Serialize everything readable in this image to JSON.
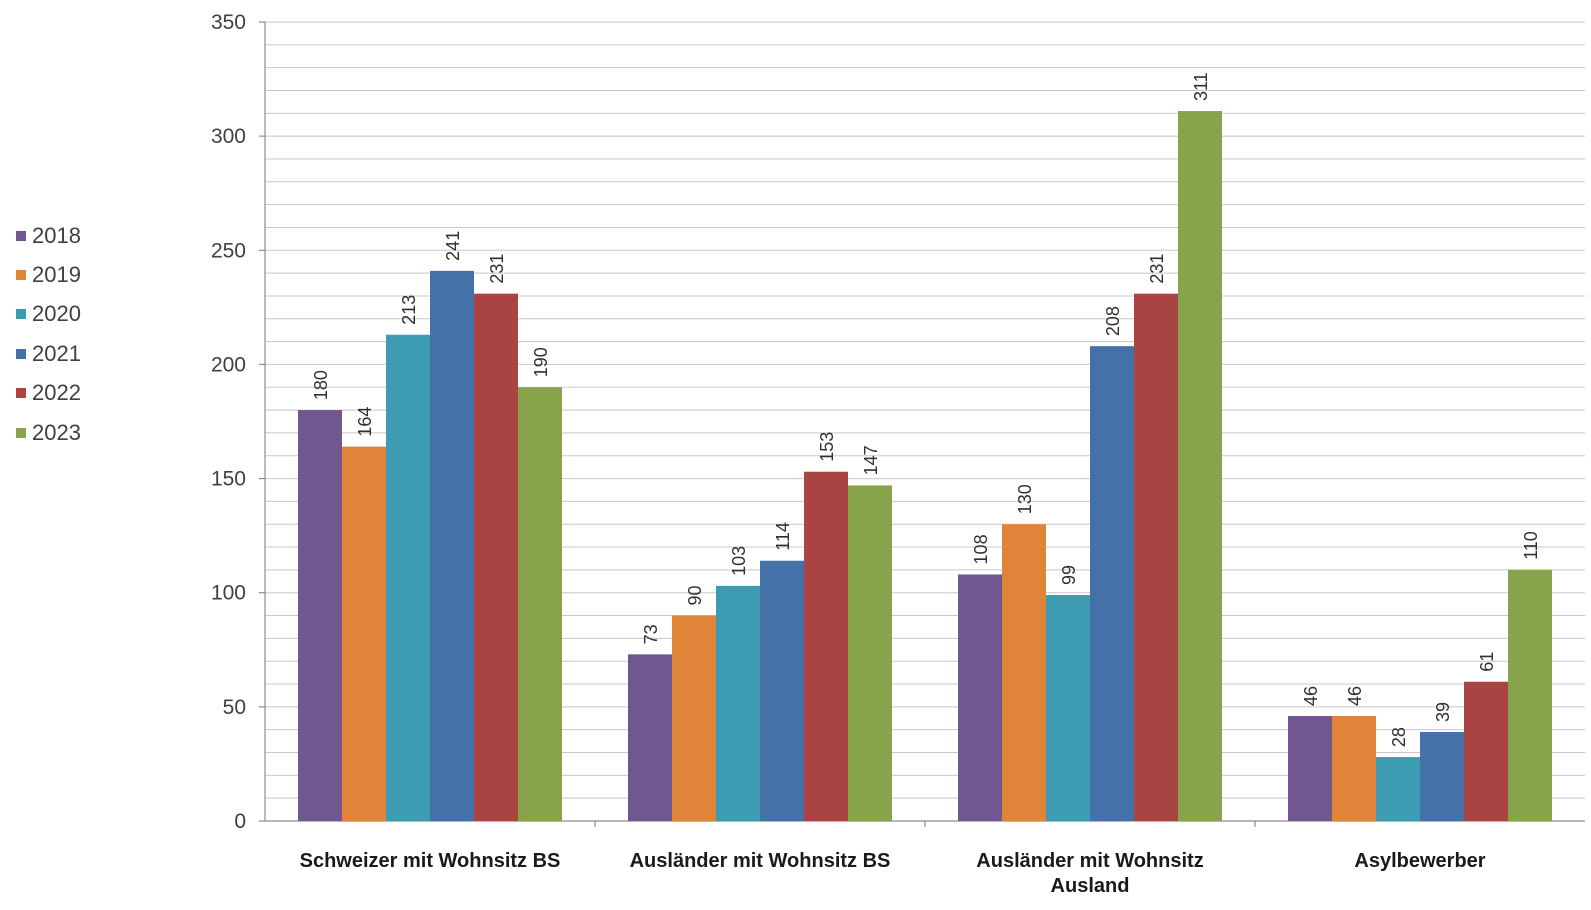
{
  "chart_data": {
    "type": "bar",
    "categories": [
      "Schweizer mit Wohnsitz BS",
      "Ausländer mit Wohnsitz BS",
      "Ausländer mit Wohnsitz Ausland",
      "Asylbewerber"
    ],
    "category_lines": [
      [
        "Schweizer mit Wohnsitz BS"
      ],
      [
        "Ausländer mit Wohnsitz BS"
      ],
      [
        "Ausländer mit Wohnsitz",
        "Ausland"
      ],
      [
        "Asylbewerber"
      ]
    ],
    "series": [
      {
        "name": "2018",
        "color": "#71578F",
        "values": [
          180,
          73,
          108,
          46
        ]
      },
      {
        "name": "2019",
        "color": "#DF8439",
        "values": [
          164,
          90,
          130,
          46
        ]
      },
      {
        "name": "2020",
        "color": "#3D9BB2",
        "values": [
          213,
          103,
          99,
          28
        ]
      },
      {
        "name": "2021",
        "color": "#4471A7",
        "values": [
          241,
          114,
          208,
          39
        ]
      },
      {
        "name": "2022",
        "color": "#A94442",
        "values": [
          231,
          153,
          231,
          61
        ]
      },
      {
        "name": "2023",
        "color": "#87A44A",
        "values": [
          190,
          147,
          311,
          110
        ]
      }
    ],
    "yticks": [
      0,
      50,
      100,
      150,
      200,
      250,
      300,
      350
    ],
    "ylim": [
      0,
      350
    ],
    "minor_grid_step": 10,
    "grid": true,
    "legend_position": "left",
    "data_labels": true,
    "title": "",
    "xlabel": "",
    "ylabel": ""
  }
}
